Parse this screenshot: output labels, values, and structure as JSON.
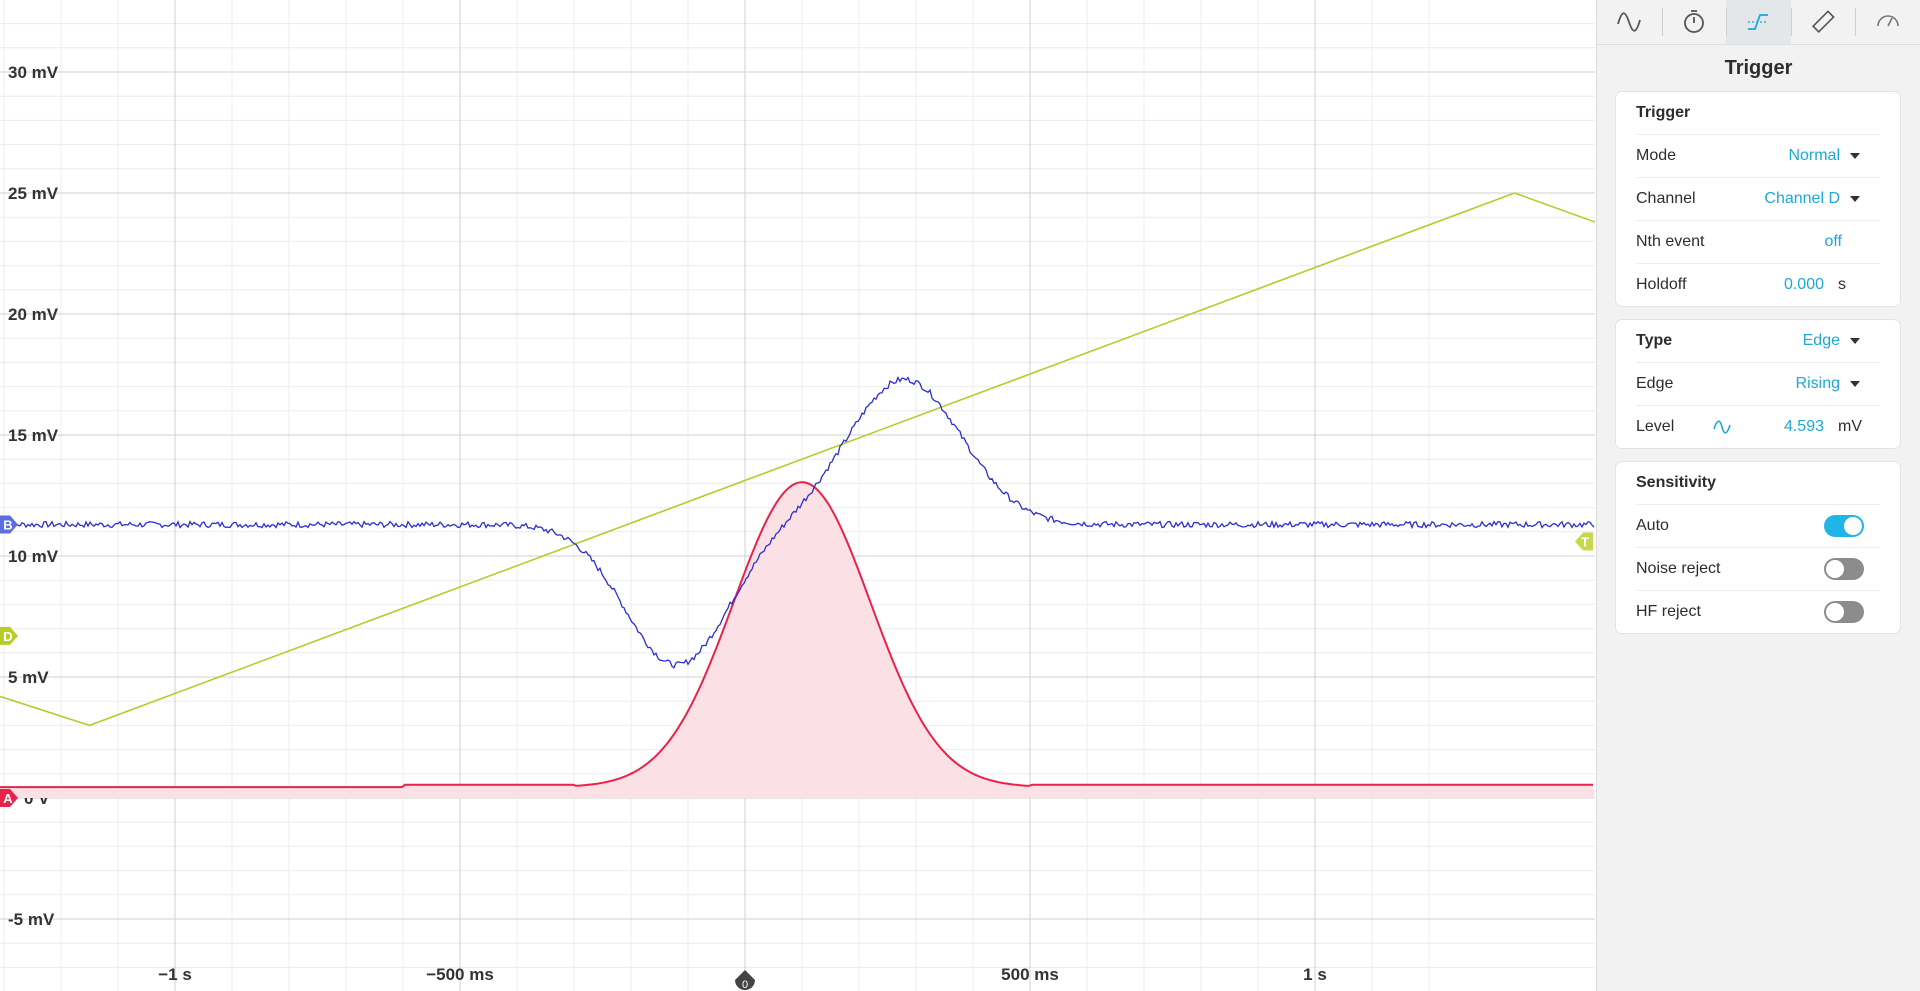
{
  "scope": {
    "y_ticks": [
      {
        "value": 30,
        "label": "30 mV"
      },
      {
        "value": 25,
        "label": "25 mV"
      },
      {
        "value": 20,
        "label": "20 mV"
      },
      {
        "value": 15,
        "label": "15 mV"
      },
      {
        "value": 10,
        "label": "10 mV"
      },
      {
        "value": 5,
        "label": "5 mV"
      },
      {
        "value": 0,
        "label": "0 V"
      },
      {
        "value": -5,
        "label": "-5 mV"
      }
    ],
    "x_ticks": [
      {
        "value": -1,
        "label": "−1 s"
      },
      {
        "value": -0.5,
        "label": "−500 ms"
      },
      {
        "value": 0.5,
        "label": "500 ms"
      },
      {
        "value": 1,
        "label": "1 s"
      }
    ],
    "trigger_time_label": "0",
    "channel_markers": {
      "A": "A",
      "B": "B",
      "D": "D",
      "T": "T"
    },
    "colors": {
      "A": "#e8234a",
      "A_fill": "#fbe0e5",
      "B": "#2b2fd0",
      "B_marker": "#5b6ee0",
      "D": "#b5cc2a",
      "T": "#c9d84a",
      "grid_major": "#d0d0d0",
      "grid_minor": "#ececec",
      "trigger_marker": "#444444"
    }
  },
  "panel": {
    "tabs": [
      {
        "name": "channels-tab",
        "icon": "sine-wave-icon",
        "active": false
      },
      {
        "name": "timebase-tab",
        "icon": "stopwatch-icon",
        "active": false
      },
      {
        "name": "trigger-tab",
        "icon": "trigger-edge-icon",
        "active": true
      },
      {
        "name": "measurements-tab",
        "icon": "ruler-icon",
        "active": false
      },
      {
        "name": "probes-tab",
        "icon": "probe-icon",
        "active": false
      }
    ],
    "title": "Trigger",
    "trigger": {
      "heading": "Trigger",
      "mode_label": "Mode",
      "mode_value": "Normal",
      "channel_label": "Channel",
      "channel_value": "Channel D",
      "nth_label": "Nth event",
      "nth_value": "off",
      "holdoff_label": "Holdoff",
      "holdoff_value": "0.000",
      "holdoff_unit": "s"
    },
    "type": {
      "type_label": "Type",
      "type_value": "Edge",
      "edge_label": "Edge",
      "edge_value": "Rising",
      "level_label": "Level",
      "level_value": "4.593",
      "level_unit": "mV"
    },
    "sensitivity": {
      "heading": "Sensitivity",
      "auto_label": "Auto",
      "auto_on": true,
      "noise_label": "Noise reject",
      "noise_on": false,
      "hf_label": "HF reject",
      "hf_on": false
    }
  }
}
